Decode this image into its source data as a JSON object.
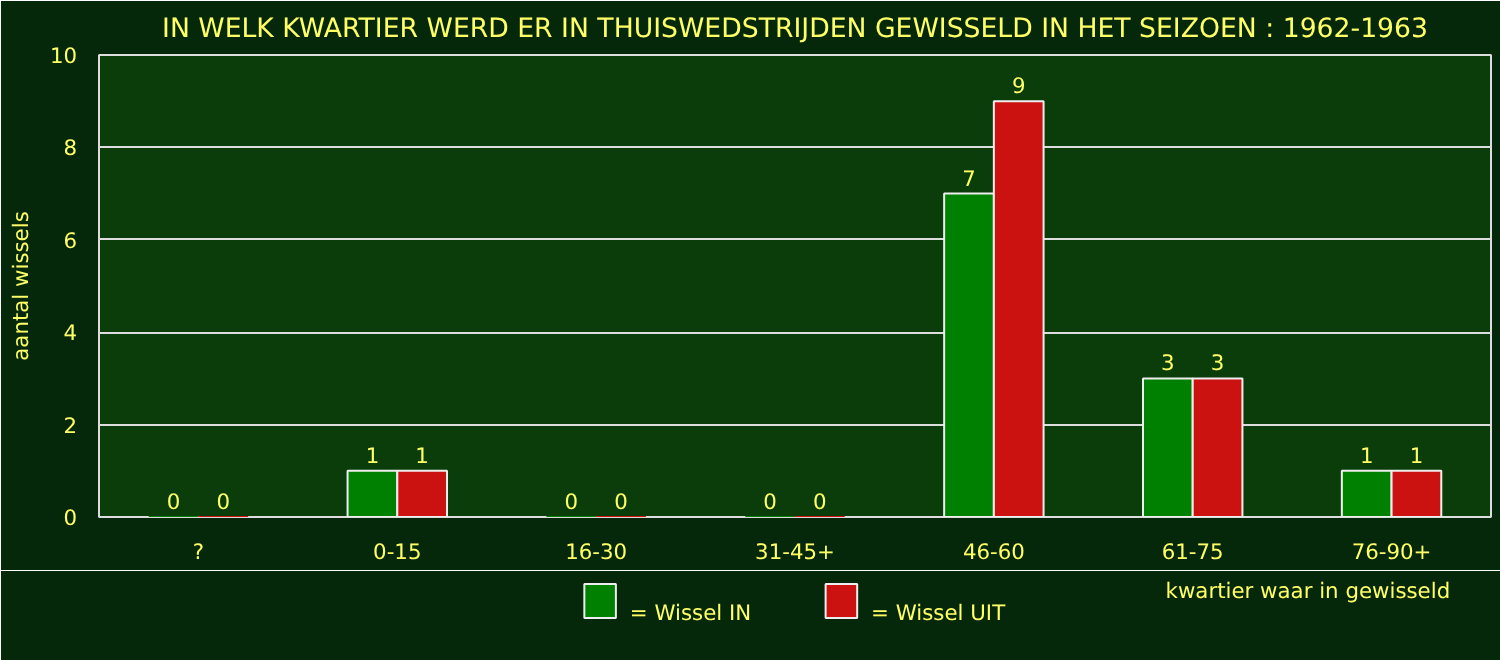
{
  "chart_data": {
    "type": "bar",
    "title": "IN WELK KWARTIER WERD ER IN THUISWEDSTRIJDEN GEWISSELD IN HET SEIZOEN : 1962-1963",
    "xlabel": "kwartier waar in gewisseld",
    "ylabel": "aantal wissels",
    "categories": [
      "?",
      "0-15",
      "16-30",
      "31-45+",
      "46-60",
      "61-75",
      "76-90+"
    ],
    "series": [
      {
        "name": "= Wissel IN",
        "color": "#008000",
        "values": [
          0,
          1,
          0,
          0,
          7,
          3,
          1
        ]
      },
      {
        "name": "= Wissel UIT",
        "color": "#cc1111",
        "values": [
          0,
          1,
          0,
          0,
          9,
          3,
          1
        ]
      }
    ],
    "ylim": [
      0,
      10
    ],
    "yticks": [
      0,
      2,
      4,
      6,
      8,
      10
    ],
    "grid": "y",
    "legend": "bottom",
    "data_labels": true
  }
}
